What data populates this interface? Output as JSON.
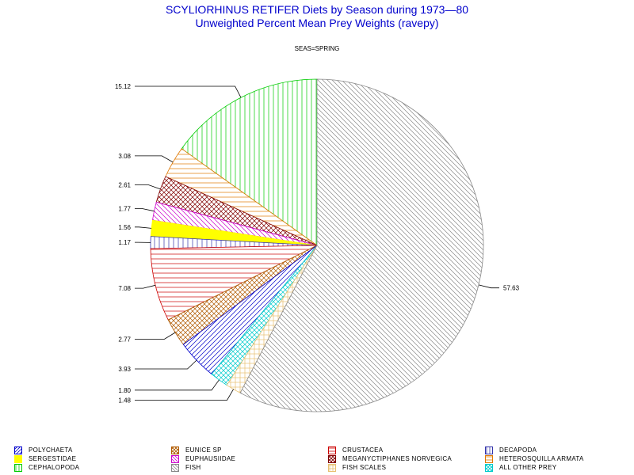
{
  "chart_data": {
    "type": "pie",
    "title": "SCYLIORHINUS RETIFER Diets by Season during 1973—80",
    "subtitle": "Unweighted Percent Mean Prey Weights (ravepy)",
    "facet_label": "SEAS=SPRING",
    "slices": [
      {
        "label": "CEPHALOPODA",
        "value": 15.12,
        "label_text": "15.12",
        "color": "#00cc00",
        "pattern": "vertical"
      },
      {
        "label": "HETEROSQUILLA ARMATA",
        "value": 3.08,
        "label_text": "3.08",
        "color": "#e07800",
        "pattern": "horizontal"
      },
      {
        "label": "MEGANYCTIPHANES NORVEGICA",
        "value": 2.61,
        "label_text": "2.61",
        "color": "#800000",
        "pattern": "crosshatch"
      },
      {
        "label": "EUPHAUSIIDAE",
        "value": 1.77,
        "label_text": "1.77",
        "color": "#cc00cc",
        "pattern": "diag-down"
      },
      {
        "label": "SERGESTIDAE",
        "value": 1.56,
        "label_text": "1.56",
        "color": "#ffff00",
        "pattern": "solid"
      },
      {
        "label": "DECAPODA",
        "value": 1.17,
        "label_text": "1.17",
        "color": "#3333aa",
        "pattern": "vertical"
      },
      {
        "label": "CRUSTACEA",
        "value": 7.08,
        "label_text": "7.08",
        "color": "#cc0000",
        "pattern": "horizontal"
      },
      {
        "label": "EUNICE SP",
        "value": 2.77,
        "label_text": "2.77",
        "color": "#b05a00",
        "pattern": "crosshatch"
      },
      {
        "label": "POLYCHAETA",
        "value": 3.93,
        "label_text": "3.93",
        "color": "#0000cc",
        "pattern": "diag-up"
      },
      {
        "label": "ALL OTHER PREY",
        "value": 1.8,
        "label_text": "1.80",
        "color": "#00cccc",
        "pattern": "crosshatch"
      },
      {
        "label": "FISH SCALES",
        "value": 1.48,
        "label_text": "1.48",
        "color": "#e8c070",
        "pattern": "grid"
      },
      {
        "label": "FISH",
        "value": 57.63,
        "label_text": "57.63",
        "color": "#888888",
        "pattern": "diag-down"
      }
    ],
    "legend": {
      "placement": "bottom",
      "entries": [
        {
          "label": "POLYCHAETA",
          "color": "#0000cc",
          "pattern": "diag-up"
        },
        {
          "label": "EUNICE SP",
          "color": "#b05a00",
          "pattern": "crosshatch"
        },
        {
          "label": "CRUSTACEA",
          "color": "#cc0000",
          "pattern": "horizontal"
        },
        {
          "label": "DECAPODA",
          "color": "#3333aa",
          "pattern": "vertical"
        },
        {
          "label": "SERGESTIDAE",
          "color": "#ffff00",
          "pattern": "solid"
        },
        {
          "label": "EUPHAUSIIDAE",
          "color": "#cc00cc",
          "pattern": "diag-down"
        },
        {
          "label": "MEGANYCTIPHANES NORVEGICA",
          "color": "#800000",
          "pattern": "crosshatch"
        },
        {
          "label": "HETEROSQUILLA ARMATA",
          "color": "#e07800",
          "pattern": "horizontal"
        },
        {
          "label": "CEPHALOPODA",
          "color": "#00cc00",
          "pattern": "vertical"
        },
        {
          "label": "FISH",
          "color": "#888888",
          "pattern": "diag-down"
        },
        {
          "label": "FISH SCALES",
          "color": "#e8c070",
          "pattern": "grid"
        },
        {
          "label": "ALL OTHER PREY",
          "color": "#00cccc",
          "pattern": "crosshatch"
        }
      ]
    }
  }
}
